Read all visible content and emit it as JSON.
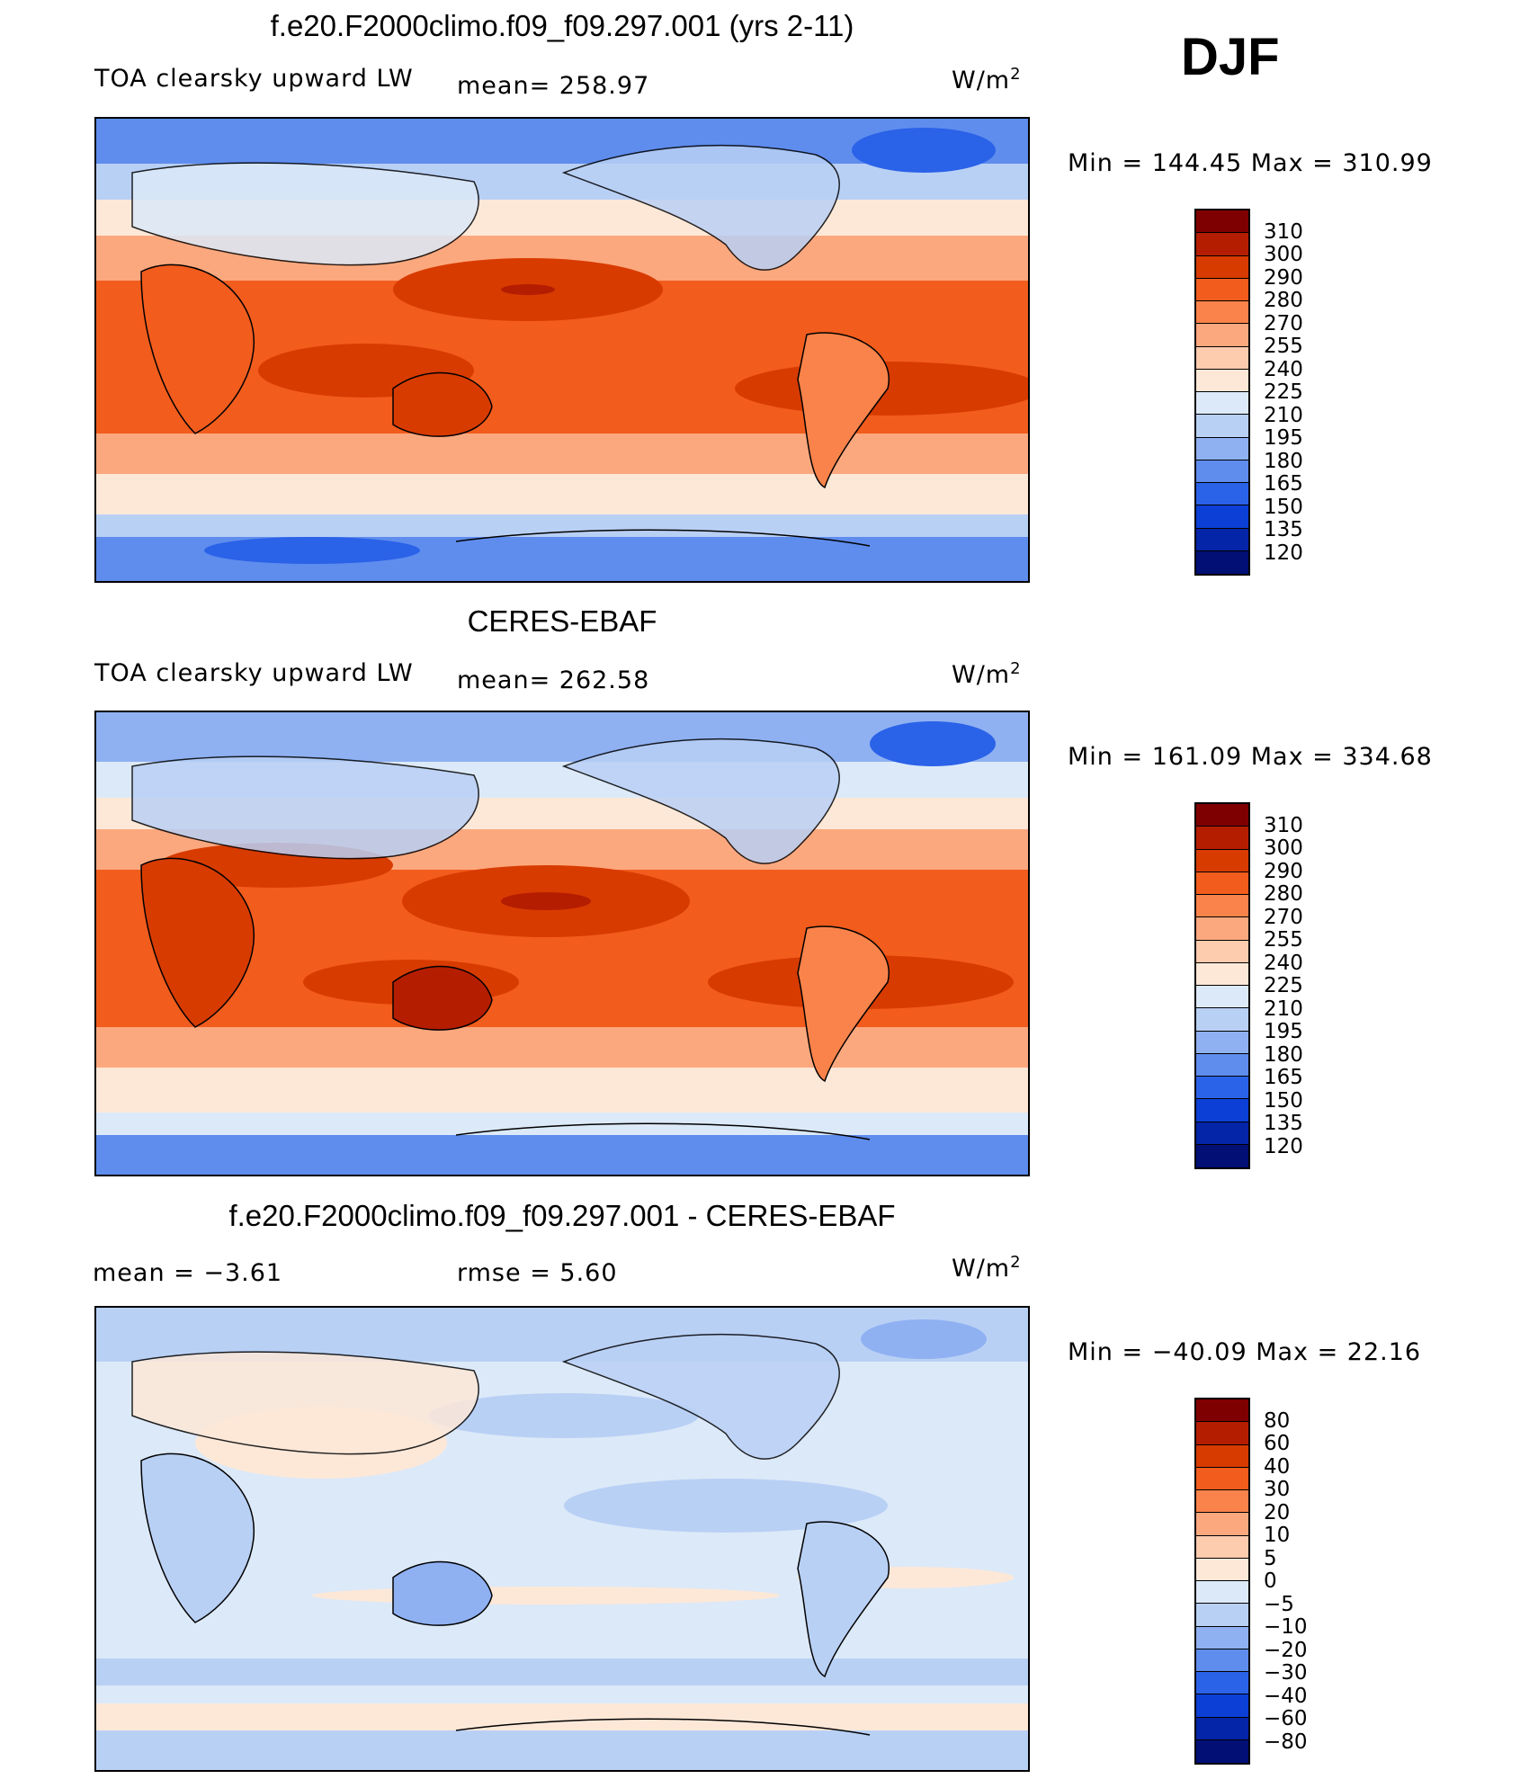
{
  "season": "DJF",
  "units": "W/m",
  "units_sup": "2",
  "panels": [
    {
      "title": "f.e20.F2000climo.f09_f09.297.001 (yrs 2-11)",
      "left_label": "TOA clearsky upward LW",
      "mid_label": "mean=  258.97",
      "minmax": "Min  =  144.45  Max  =  310.99",
      "palette": "abs"
    },
    {
      "title": "CERES-EBAF",
      "left_label": "TOA clearsky upward LW",
      "mid_label": "mean=  262.58",
      "minmax": "Min  =  161.09  Max  =  334.68",
      "palette": "abs"
    },
    {
      "title": "f.e20.F2000climo.f09_f09.297.001 - CERES-EBAF",
      "left_label": "mean  =     −3.61",
      "mid_label": "rmse  =      5.60",
      "minmax": "Min  =  −40.09  Max  =    22.16",
      "palette": "diff"
    }
  ],
  "legend_abs": {
    "colors": [
      "#7f0000",
      "#b51d00",
      "#d83b00",
      "#f25c1d",
      "#f9834a",
      "#fca87e",
      "#fdcbad",
      "#fde8d8",
      "#dce9f8",
      "#b9d0f5",
      "#8fb1f2",
      "#5f8ded",
      "#2a62e8",
      "#0b3fd6",
      "#0425a8",
      "#020f74"
    ],
    "ticks": [
      "310",
      "300",
      "290",
      "280",
      "270",
      "255",
      "240",
      "225",
      "210",
      "195",
      "180",
      "165",
      "150",
      "135",
      "120"
    ]
  },
  "legend_diff": {
    "colors": [
      "#7f0000",
      "#b51d00",
      "#d83b00",
      "#f25c1d",
      "#f9834a",
      "#fca87e",
      "#fdcbad",
      "#fde8d8",
      "#dce9f8",
      "#b9d0f5",
      "#8fb1f2",
      "#5f8ded",
      "#2a62e8",
      "#0b3fd6",
      "#0425a8",
      "#020f74"
    ],
    "ticks": [
      "80",
      "60",
      "40",
      "30",
      "20",
      "10",
      "5",
      "0",
      "−5",
      "−10",
      "−20",
      "−30",
      "−40",
      "−60",
      "−80"
    ]
  }
}
